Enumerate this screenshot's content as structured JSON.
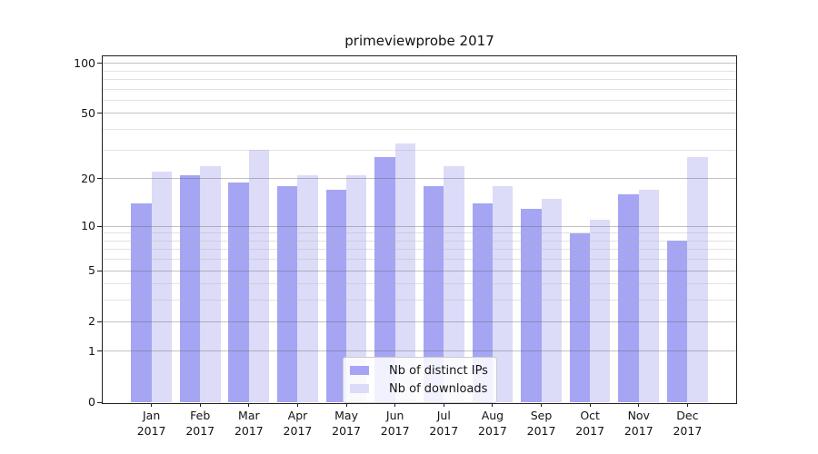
{
  "chart_data": {
    "type": "bar",
    "title": "primeviewprobe 2017",
    "xlabel": "",
    "ylabel": "",
    "year": "2017",
    "categories": [
      "Jan",
      "Feb",
      "Mar",
      "Apr",
      "May",
      "Jun",
      "Jul",
      "Aug",
      "Sep",
      "Oct",
      "Nov",
      "Dec"
    ],
    "series": [
      {
        "name": "Nb of distinct IPs",
        "color": "#a5a5f4",
        "values": [
          14,
          21,
          19,
          18,
          17,
          27,
          18,
          14,
          13,
          9,
          16,
          8
        ]
      },
      {
        "name": "Nb of downloads",
        "color": "#dcdcf8",
        "values": [
          22,
          24,
          30,
          21,
          21,
          33,
          24,
          18,
          15,
          11,
          17,
          27
        ]
      }
    ],
    "yscale": "log1p",
    "ylim": [
      0,
      110
    ],
    "yticks_major": [
      0,
      1,
      2,
      5,
      10,
      20,
      50,
      100
    ],
    "yticks_minor": [
      3,
      4,
      6,
      7,
      8,
      9,
      30,
      40,
      60,
      70,
      80,
      90
    ],
    "grid": "on",
    "legend": {
      "position": "lower center inside",
      "entries": [
        "Nb of distinct IPs",
        "Nb of downloads"
      ]
    }
  },
  "colors": {
    "frame": "#1f1f1f",
    "text": "#141414",
    "major_grid": "rgba(95,95,95,0.38)",
    "minor_grid": "rgba(178,178,178,0.38)",
    "legend_border": "#cccccc",
    "legend_bg": "rgba(255,255,255,0.85)"
  }
}
